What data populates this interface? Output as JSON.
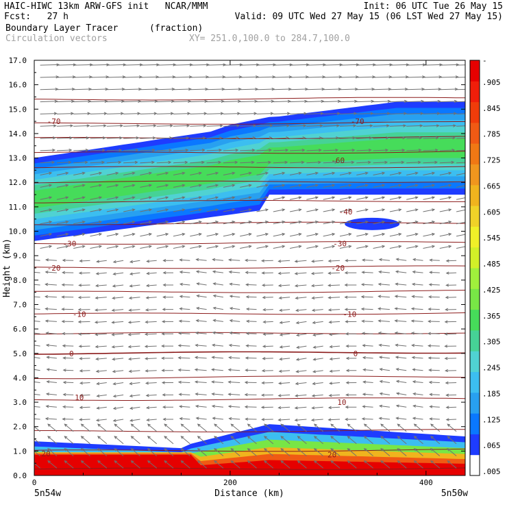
{
  "header": {
    "line1_left": "HAIC-HIWC 13km ARW-GFS init   NCAR/MMM",
    "line1_right": "Init: 06 UTC Tue 26 May 15",
    "line2_left": "Fcst:   27 h",
    "line2_right": "Valid: 09 UTC Wed 27 May 15 (06 LST Wed 27 May 15)",
    "line3_left": "Boundary Layer Tracer",
    "line3_units": "(fraction)",
    "line4_left": "Circulation vectors",
    "line4_right": "XY= 251.0,100.0 to 284.7,100.0"
  },
  "colors": {
    "contour": "#8b1a1a",
    "vector": "#707070",
    "colorbar": [
      "#ffffff",
      "#1e3cff",
      "#0a78ff",
      "#28a0f0",
      "#3cbef0",
      "#50d2d2",
      "#46d296",
      "#46dc5a",
      "#78e646",
      "#a0f03c",
      "#d2f028",
      "#f0f028",
      "#f0d228",
      "#f0b41e",
      "#f0961e",
      "#f07814",
      "#f05a14",
      "#f03c0a",
      "#f01e0a",
      "#e60000"
    ]
  },
  "chart_data": {
    "type": "heatmap",
    "title": "Boundary Layer Tracer",
    "units": "(fraction)",
    "overlay": "Circulation vectors",
    "xlabel": "Distance (km)",
    "ylabel": "Height (km)",
    "xlim": [
      0,
      440
    ],
    "ylim": [
      0,
      17
    ],
    "xticks": [
      "0",
      "200",
      "400"
    ],
    "yticks": [
      "0.0",
      "1.0",
      "2.0",
      "3.0",
      "4.0",
      "5.0",
      "6.0",
      "7.0",
      "8.0",
      "9.0",
      "10.0",
      "11.0",
      "12.0",
      "13.0",
      "14.0",
      "15.0",
      "16.0",
      "17.0"
    ],
    "x_end_labels": [
      "5n54w",
      "5n50w"
    ],
    "colorbar_labels": [
      ".005",
      ".065",
      ".125",
      ".185",
      ".245",
      ".305",
      ".365",
      ".425",
      ".485",
      ".545",
      ".605",
      ".665",
      ".725",
      ".785",
      ".845",
      ".905",
      "-"
    ],
    "contour_labels": [
      {
        "text": "-70",
        "x": 20,
        "y": 14.5
      },
      {
        "text": "-70",
        "x": 330,
        "y": 14.5
      },
      {
        "text": "-60",
        "x": 310,
        "y": 12.9
      },
      {
        "text": "-40",
        "x": 318,
        "y": 10.8
      },
      {
        "text": "-30",
        "x": 36,
        "y": 9.5
      },
      {
        "text": "-30",
        "x": 312,
        "y": 9.5
      },
      {
        "text": "-20",
        "x": 20,
        "y": 8.5
      },
      {
        "text": "-20",
        "x": 310,
        "y": 8.5
      },
      {
        "text": "-10",
        "x": 46,
        "y": 6.6
      },
      {
        "text": "-10",
        "x": 322,
        "y": 6.6
      },
      {
        "text": "0",
        "x": 38,
        "y": 5.0
      },
      {
        "text": "0",
        "x": 328,
        "y": 5.0
      },
      {
        "text": "10",
        "x": 46,
        "y": 3.2
      },
      {
        "text": "10",
        "x": 314,
        "y": 3.0
      },
      {
        "text": "20",
        "x": 12,
        "y": 0.9
      },
      {
        "text": "20",
        "x": 304,
        "y": 0.85
      }
    ]
  }
}
